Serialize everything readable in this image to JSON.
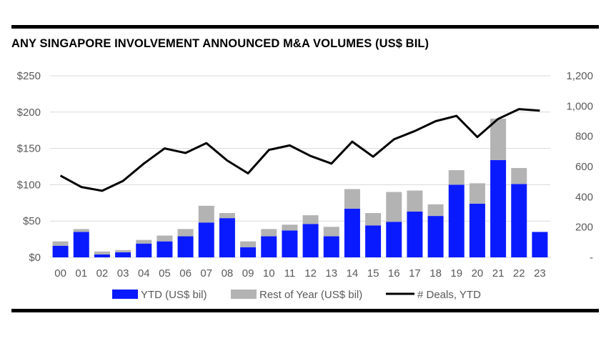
{
  "title": "ANY SINGAPORE INVOLVEMENT ANNOUNCED M&A VOLUMES (US$ BIL)",
  "colors": {
    "ytd": "#0a1aff",
    "rest": "#b3b3b3",
    "deals": "#000000",
    "grid": "#d9d9d9",
    "text": "#595959"
  },
  "chart_data": {
    "type": "bar",
    "stacked": true,
    "title": "ANY SINGAPORE INVOLVEMENT ANNOUNCED M&A VOLUMES (US$ BIL)",
    "categories": [
      "00",
      "01",
      "02",
      "03",
      "04",
      "05",
      "06",
      "07",
      "08",
      "09",
      "10",
      "11",
      "12",
      "13",
      "14",
      "15",
      "16",
      "17",
      "18",
      "19",
      "20",
      "21",
      "22",
      "23"
    ],
    "series": [
      {
        "name": "YTD (US$ bil)",
        "axis": "left",
        "kind": "bar",
        "values": [
          16,
          35,
          4,
          7,
          19,
          22,
          29,
          48,
          54,
          14,
          29,
          37,
          46,
          29,
          67,
          44,
          49,
          63,
          57,
          100,
          74,
          134,
          101,
          35
        ]
      },
      {
        "name": "Rest of Year (US$ bil)",
        "axis": "left",
        "kind": "bar",
        "values": [
          6,
          4,
          4,
          3,
          5,
          8,
          10,
          23,
          7,
          8,
          10,
          8,
          12,
          13,
          27,
          17,
          41,
          29,
          16,
          20,
          28,
          57,
          22,
          0
        ]
      },
      {
        "name": "# Deals, YTD",
        "axis": "right",
        "kind": "line",
        "values": [
          540,
          465,
          440,
          505,
          620,
          720,
          690,
          755,
          640,
          555,
          710,
          740,
          670,
          620,
          765,
          665,
          780,
          835,
          900,
          935,
          795,
          915,
          980,
          970
        ]
      }
    ],
    "y_left": {
      "min": 0,
      "max": 250,
      "ticks": [
        0,
        50,
        100,
        150,
        200,
        250
      ],
      "tick_labels": [
        "$0",
        "$50",
        "$100",
        "$150",
        "$200",
        "$250"
      ]
    },
    "y_right": {
      "min": 0,
      "max": 1200,
      "ticks": [
        0,
        200,
        400,
        600,
        800,
        1000,
        1200
      ],
      "tick_labels": [
        "-",
        "200",
        "400",
        "600",
        "800",
        "1,000",
        "1,200"
      ]
    },
    "legend": [
      "YTD (US$ bil)",
      "Rest of Year (US$ bil)",
      "# Deals, YTD"
    ],
    "legend_position": "bottom",
    "grid": true
  }
}
